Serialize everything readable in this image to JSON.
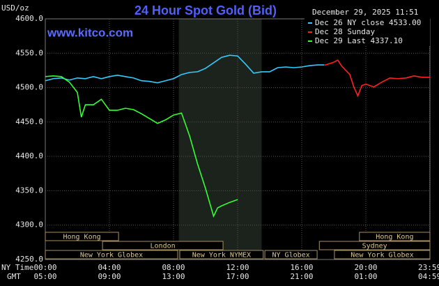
{
  "chart_data": {
    "type": "line",
    "title": "24 Hour Spot Gold (Bid)",
    "website": "www.kitco.com",
    "timestamp": "December 29, 2025 11:51",
    "y_unit_label": "USD/oz",
    "x_label": "NY Time",
    "x2_label": "GMT",
    "xlim": [
      0,
      24
    ],
    "ylim": [
      4250,
      4600
    ],
    "grid": true,
    "yticks": [
      {
        "value": 4250,
        "label": "4250.0"
      },
      {
        "value": 4300,
        "label": "4300.0"
      },
      {
        "value": 4350,
        "label": "4350.0"
      },
      {
        "value": 4400,
        "label": "4400.0"
      },
      {
        "value": 4450,
        "label": "4450.0"
      },
      {
        "value": 4500,
        "label": "4500.0"
      },
      {
        "value": 4550,
        "label": "4550.0"
      },
      {
        "value": 4600,
        "label": "4600.0"
      }
    ],
    "xticks": [
      {
        "value": 0,
        "label": "00:00"
      },
      {
        "value": 4,
        "label": "04:00"
      },
      {
        "value": 8,
        "label": "08:00"
      },
      {
        "value": 12,
        "label": "12:00"
      },
      {
        "value": 16,
        "label": "16:00"
      },
      {
        "value": 20,
        "label": "20:00"
      },
      {
        "value": 23.983,
        "label": "23:59"
      }
    ],
    "x2ticks": [
      {
        "value": 0,
        "label": "05:00"
      },
      {
        "value": 4,
        "label": "09:00"
      },
      {
        "value": 8,
        "label": "13:00"
      },
      {
        "value": 12,
        "label": "17:00"
      },
      {
        "value": 16,
        "label": "21:00"
      },
      {
        "value": 20,
        "label": "01:00"
      },
      {
        "value": 23.983,
        "label": "04:59"
      }
    ],
    "shaded_range": [
      8.33,
      13.5
    ],
    "sessions": [
      [
        {
          "name": "Hong Kong",
          "start": 0,
          "end": 4.57
        },
        {
          "name": "Hong Kong",
          "start": 19.6,
          "end": 24
        }
      ],
      [
        {
          "name": "London",
          "start": 3.57,
          "end": 11.09
        },
        {
          "name": "Sydney",
          "start": 17.1,
          "end": 24
        }
      ],
      [
        {
          "name": "New York Globex",
          "start": 0,
          "end": 8.26
        },
        {
          "name": "New York NYMEX",
          "start": 8.39,
          "end": 13.6
        },
        {
          "name": "NY Globex",
          "start": 13.7,
          "end": 16.96
        },
        {
          "name": "New York Globex",
          "start": 18.04,
          "end": 24
        }
      ]
    ],
    "series": [
      {
        "name": "Dec 26 NY close 4533.00",
        "color": "#33ccff",
        "x": [
          0,
          0.5,
          1,
          1.5,
          2,
          2.5,
          3,
          3.5,
          4,
          4.5,
          5,
          5.5,
          6,
          6.5,
          7,
          7.5,
          8,
          8.5,
          9,
          9.5,
          10,
          10.5,
          11,
          11.5,
          12,
          12.5,
          13,
          13.5,
          14,
          14.5,
          15,
          15.5,
          16,
          16.5,
          17,
          17.4
        ],
        "values": [
          4510,
          4513,
          4514,
          4511,
          4514,
          4513,
          4516,
          4513,
          4516,
          4518,
          4516,
          4514,
          4510,
          4509,
          4507,
          4510,
          4513,
          4519,
          4522,
          4523,
          4528,
          4536,
          4544,
          4547,
          4546,
          4534,
          4521,
          4523,
          4523,
          4529,
          4530,
          4529,
          4530,
          4532,
          4533,
          4533
        ]
      },
      {
        "name": "Dec 28 Sunday",
        "color": "#ff2020",
        "x": [
          17.4,
          17.5,
          18,
          18.25,
          18.5,
          19,
          19.25,
          19.5,
          19.75,
          20,
          20.5,
          21,
          21.5,
          22,
          22.5,
          23,
          23.5,
          24
        ],
        "values": [
          4533,
          4533,
          4537,
          4540,
          4531,
          4519,
          4501,
          4488,
          4503,
          4505,
          4501,
          4508,
          4514,
          4513,
          4514,
          4517,
          4515,
          4515
        ]
      },
      {
        "name": "Dec 29 Last 4337.10",
        "color": "#33ff33",
        "x": [
          0,
          0.5,
          1,
          1.5,
          2,
          2.25,
          2.5,
          3,
          3.5,
          4,
          4.5,
          5,
          5.5,
          6,
          6.5,
          7,
          7.5,
          8,
          8.5,
          9,
          9.5,
          10,
          10.25,
          10.5,
          10.75,
          11,
          11.5,
          12
        ],
        "values": [
          4516,
          4517,
          4516,
          4508,
          4493,
          4457,
          4475,
          4475,
          4483,
          4467,
          4467,
          4470,
          4468,
          4462,
          4455,
          4448,
          4453,
          4460,
          4463,
          4430,
          4389,
          4353,
          4333,
          4313,
          4325,
          4328,
          4333,
          4337.1
        ]
      }
    ]
  }
}
